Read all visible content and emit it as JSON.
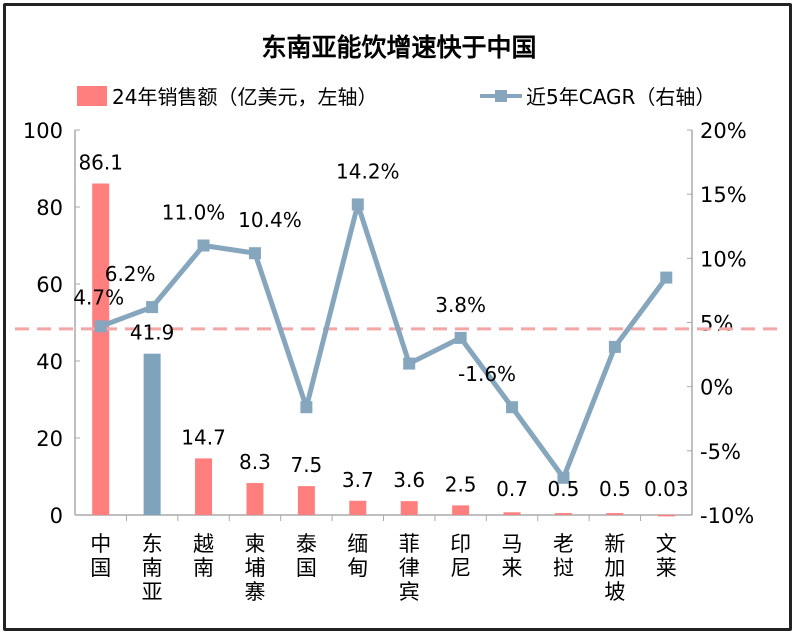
{
  "chart_data": {
    "type": "bar+line",
    "title": "东南亚能饮增速快于中国",
    "categories": [
      "中国",
      "东南亚",
      "越南",
      "柬埔寨",
      "泰国",
      "缅甸",
      "菲律宾",
      "印尼",
      "马来",
      "老挝",
      "新加坡",
      "文莱"
    ],
    "series": [
      {
        "name": "24年销售额（亿美元，左轴）",
        "type": "bar",
        "axis": "left",
        "values": [
          86.1,
          41.9,
          14.7,
          8.3,
          7.5,
          3.7,
          3.6,
          2.5,
          0.7,
          0.5,
          0.5,
          0.03
        ],
        "labels": [
          "86.1",
          "41.9",
          "14.7",
          "8.3",
          "7.5",
          "3.7",
          "3.6",
          "2.5",
          "0.7",
          "0.5",
          "0.5",
          "0.03"
        ]
      },
      {
        "name": "近5年CAGR（右轴）",
        "type": "line",
        "axis": "right",
        "values": [
          4.7,
          6.2,
          11.0,
          10.4,
          -1.6,
          14.2,
          1.8,
          3.8,
          -1.6,
          -7.1,
          3.1,
          8.5
        ],
        "labels": [
          "4.7%",
          "6.2%",
          "11.0%",
          "10.4%",
          "",
          "14.2%",
          "",
          "3.8%",
          "-1.6%",
          "",
          "",
          ""
        ]
      }
    ],
    "reference_line": {
      "axis": "right",
      "value": 4.5,
      "style": "dashed"
    },
    "left_axis": {
      "ylim": [
        0,
        100
      ],
      "ticks": [
        "0",
        "20",
        "40",
        "60",
        "80",
        "100"
      ]
    },
    "right_axis": {
      "ylim": [
        -10,
        20
      ],
      "ticks": [
        "-10%",
        "-5%",
        "0%",
        "5%",
        "10%",
        "15%",
        "20%"
      ]
    },
    "legend_placement": "top",
    "colors": {
      "bar": "#ff7f7f",
      "bar_highlight": "#7fa3bd",
      "line": "#85a6bd",
      "reference": "#f4a6a6"
    },
    "grid": false
  }
}
